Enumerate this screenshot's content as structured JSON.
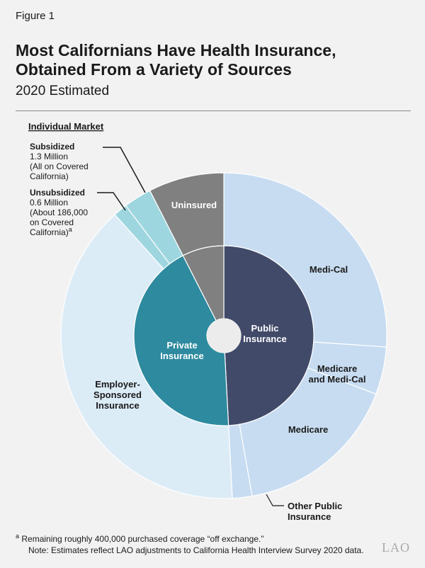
{
  "figure_label": "Figure 1",
  "title_line1": "Most Californians Have Health Insurance,",
  "title_line2": "Obtained From a Variety of Sources",
  "subtitle": "2020 Estimated",
  "footnote_marker": "a",
  "footnote": "Remaining roughly 400,000 purchased coverage “off exchange.”",
  "note": "Note: Estimates reflect LAO adjustments to California Health Interview Survey 2020 data.",
  "logo": "LAO",
  "chart_data": {
    "type": "pie",
    "subtype": "nested donut",
    "title": "Most Californians Have Health Insurance, Obtained From a Variety of Sources",
    "subtitle": "2020 Estimated",
    "unit": "share of population (degrees of circle, estimated)",
    "inner_ring": [
      {
        "name": "Public Insurance",
        "label_lines": [
          "Public",
          "Insurance"
        ],
        "value": 177,
        "color": "#414a69"
      },
      {
        "name": "Private Insurance",
        "label_lines": [
          "Private",
          "Insurance"
        ],
        "value": 156,
        "color": "#2e8a9f"
      },
      {
        "name": "Uninsured",
        "value": 27,
        "color": "#808080"
      }
    ],
    "outer_ring": [
      {
        "name": "Medi-Cal",
        "label_lines": [
          "Medi-Cal"
        ],
        "value": 94,
        "color": "#c7dcf1"
      },
      {
        "name": "Medicare and Medi-Cal",
        "label_lines": [
          "Medicare",
          "and Medi-Cal"
        ],
        "value": 17,
        "color": "#c7dcf1"
      },
      {
        "name": "Medicare",
        "label_lines": [
          "Medicare"
        ],
        "value": 59,
        "color": "#c7dcf1"
      },
      {
        "name": "Other Public Insurance",
        "label_lines": [
          "Other Public",
          "Insurance"
        ],
        "value": 7,
        "color": "#c7dcf1"
      },
      {
        "name": "Employer-Sponsored Insurance",
        "label_lines": [
          "Employer-",
          "Sponsored",
          "Insurance"
        ],
        "value": 141,
        "color": "#dcecf7"
      },
      {
        "name": "Unsubsidized",
        "value": 5,
        "color": "#9ed6e0"
      },
      {
        "name": "Subsidized",
        "value": 10,
        "color": "#9ed6e0"
      },
      {
        "name": "Uninsured",
        "label_lines": [
          "Uninsured"
        ],
        "value": 27,
        "color": "#808080"
      }
    ],
    "individual_market": {
      "heading": "Individual Market",
      "subsidized": {
        "title": "Subsidized",
        "lines": [
          "1.3 Million",
          "(All on Covered",
          "California)"
        ]
      },
      "unsubsidized": {
        "title": "Unsubsidized",
        "lines": [
          "0.6 Million",
          "(About 186,000",
          "on Covered",
          "California)"
        ],
        "footnote_marker": "a"
      }
    }
  }
}
